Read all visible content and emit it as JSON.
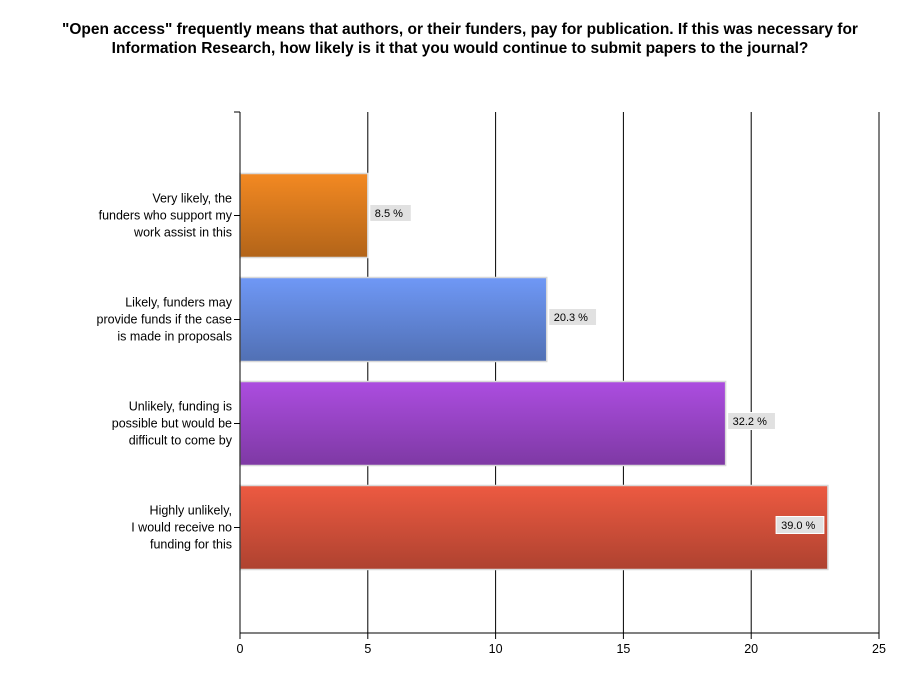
{
  "chart_data": {
    "type": "bar",
    "orientation": "horizontal",
    "title": "\"Open access\" frequently means that authors, or their funders, pay for publication.  If this was necessary for Information Research, how likely is it that you would continue to submit papers to the journal?",
    "categories": [
      [
        "Very likely, the",
        "funders who support my",
        "work assist in this"
      ],
      [
        "Likely, funders may",
        "provide funds if the case",
        "is made in proposals"
      ],
      [
        "Unlikely, funding is",
        "possible but would be",
        "difficult to come by"
      ],
      [
        "Highly unlikely,",
        "I would receive no",
        "funding for this"
      ]
    ],
    "values": [
      5,
      12,
      19,
      23
    ],
    "data_labels": [
      "8.5 %",
      "20.3 %",
      "32.2 %",
      "39.0 %"
    ],
    "xlim": [
      0,
      25
    ],
    "xticks": [
      "0",
      "5",
      "10",
      "15",
      "20",
      "25"
    ],
    "grid": true,
    "colors": [
      "#d97a1e",
      "#6388dc",
      "#9a45c8",
      "#d4503a"
    ]
  }
}
